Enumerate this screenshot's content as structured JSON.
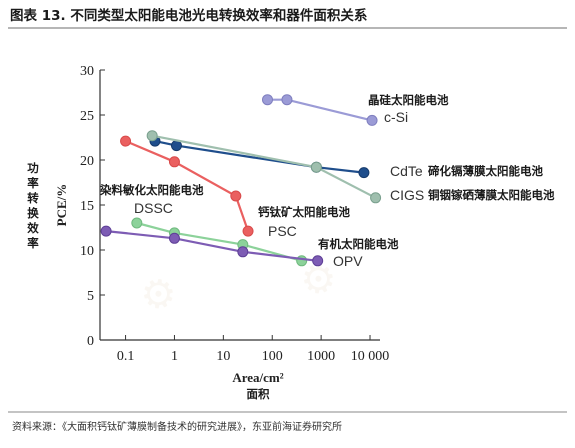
{
  "page": {
    "title": "图表 13. 不同类型太阳能电池光电转换效率和器件面积关系",
    "source": "资料来源：《大面积钙钛矿薄膜制备技术的研究进展》，东亚前海证券研究所",
    "y_label_cn": "功率转换效率",
    "x_label_cn": "面积"
  },
  "chart_data": {
    "type": "line",
    "xlabel": "Area/cm²",
    "ylabel": "PCE/%",
    "xscale": "log",
    "xlim": [
      0.03,
      16000
    ],
    "ylim": [
      0,
      30
    ],
    "x_ticks": [
      {
        "value": 0.1,
        "label": "0.1"
      },
      {
        "value": 1,
        "label": "1"
      },
      {
        "value": 10,
        "label": "10"
      },
      {
        "value": 100,
        "label": "100"
      },
      {
        "value": 1000,
        "label": "1000"
      },
      {
        "value": 10000,
        "label": "10 000"
      }
    ],
    "y_ticks": [
      0,
      5,
      10,
      15,
      20,
      25,
      30
    ],
    "grid": false,
    "series": [
      {
        "key": "si",
        "name": "c-Si",
        "name_cn": "晶硅太阳能电池",
        "color": "#9b9bd6",
        "points": [
          [
            80,
            26.7
          ],
          [
            200,
            26.7
          ],
          [
            11000,
            24.4
          ]
        ]
      },
      {
        "key": "cdte",
        "name": "CdTe",
        "name_cn": "碲化镉薄膜太阳能电池",
        "color": "#1f4e8c",
        "points": [
          [
            0.4,
            22.1
          ],
          [
            1.1,
            21.6
          ],
          [
            800,
            19.2
          ],
          [
            7500,
            18.6
          ]
        ]
      },
      {
        "key": "cigs",
        "name": "CIGS",
        "name_cn": "铜铟镓硒薄膜太阳能电池",
        "color": "#9fbfae",
        "points": [
          [
            0.35,
            22.7
          ],
          [
            800,
            19.2
          ],
          [
            13000,
            15.8
          ]
        ]
      },
      {
        "key": "psc",
        "name": "PSC",
        "name_cn": "钙钛矿太阳能电池",
        "color": "#ea6060",
        "points": [
          [
            0.1,
            22.1
          ],
          [
            1,
            19.8
          ],
          [
            18,
            16.0
          ],
          [
            32,
            12.1
          ]
        ]
      },
      {
        "key": "dssc",
        "name": "DSSC",
        "name_cn": "染料敏化太阳能电池",
        "color": "#8cd29a",
        "points": [
          [
            0.17,
            13.0
          ],
          [
            1,
            11.9
          ],
          [
            25,
            10.6
          ],
          [
            400,
            8.8
          ]
        ]
      },
      {
        "key": "opv",
        "name": "OPV",
        "name_cn": "有机太阳能电池",
        "color": "#7d5cb4",
        "points": [
          [
            0.04,
            12.1
          ],
          [
            1,
            11.3
          ],
          [
            25,
            9.8
          ],
          [
            850,
            8.8
          ]
        ]
      }
    ]
  }
}
